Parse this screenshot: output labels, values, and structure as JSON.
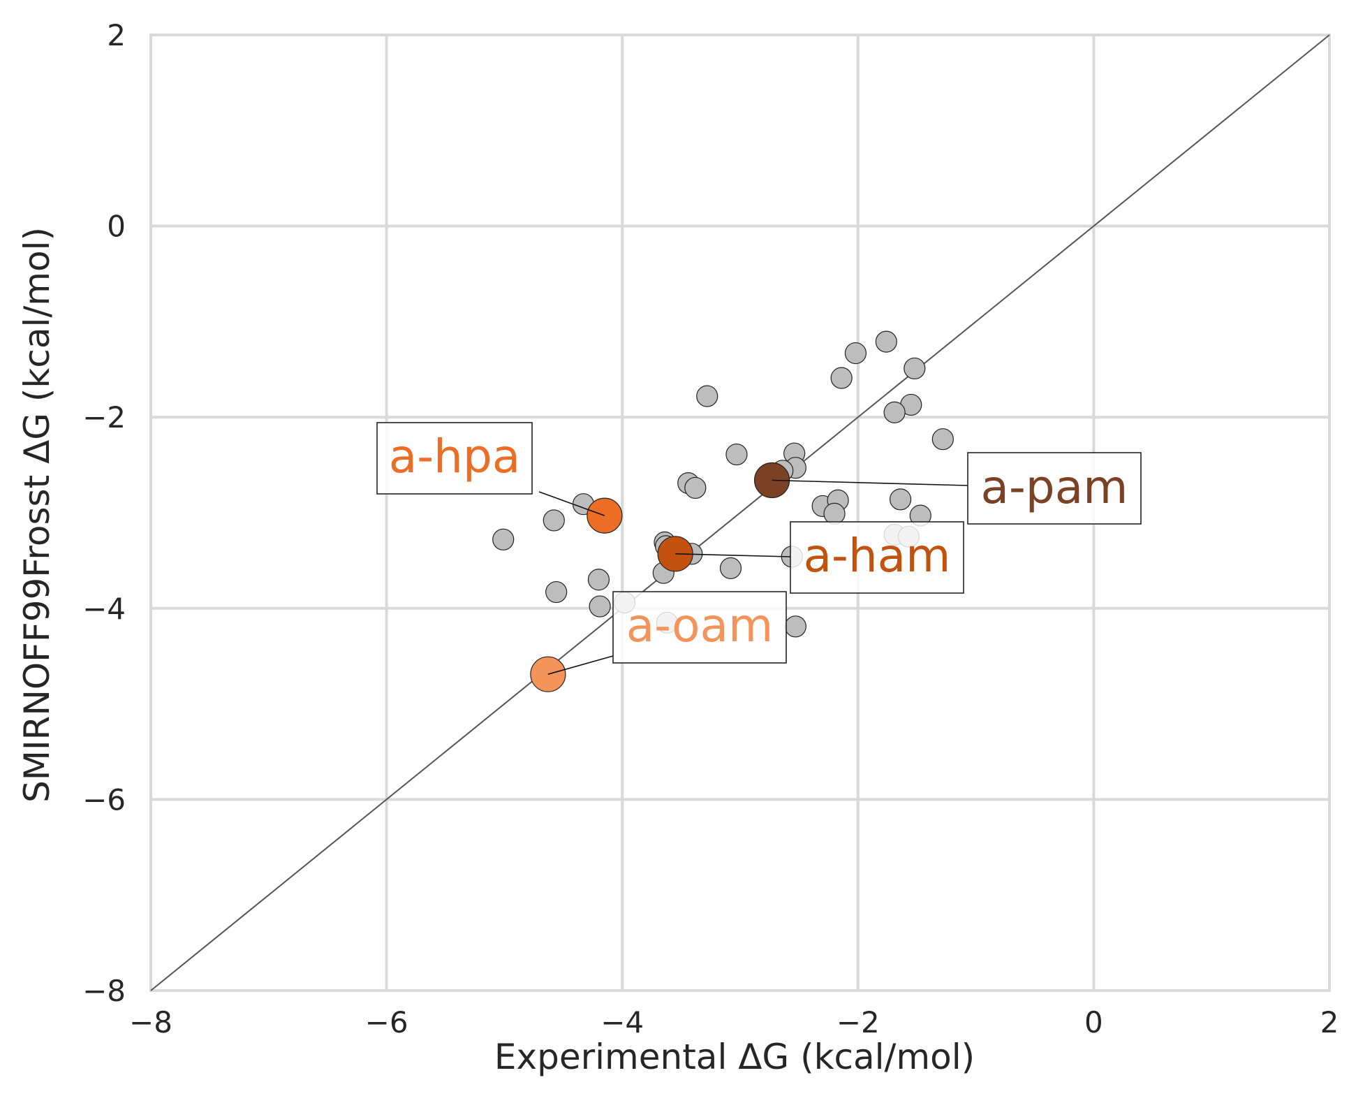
{
  "chart_data": {
    "type": "scatter",
    "title": "",
    "xlabel": "Experimental ΔG (kcal/mol)",
    "ylabel": "SMIRNOFF99Frosst ΔG (kcal/mol)",
    "xlim": [
      -8,
      2
    ],
    "ylim": [
      -8,
      2
    ],
    "xticks": [
      -8,
      -6,
      -4,
      -2,
      0,
      2
    ],
    "yticks": [
      -8,
      -6,
      -4,
      -2,
      0,
      2
    ],
    "xtick_labels": [
      "−8",
      "−6",
      "−4",
      "−2",
      "0",
      "2"
    ],
    "ytick_labels": [
      "−8",
      "−6",
      "−4",
      "−2",
      "0",
      "2"
    ],
    "grid": true,
    "identity_line": true,
    "colors": {
      "background_points": "#bdbdbd",
      "grid": "#d9d9d9",
      "identity_line": "#555555",
      "a-hpa": "#ec6d26",
      "a-pam": "#7b4125",
      "a-ham": "#c4520f",
      "a-oam": "#f4945a"
    },
    "series": [
      {
        "points": [
          [
            -1.76,
            -1.21
          ],
          [
            -2.02,
            -1.33
          ],
          [
            -1.52,
            -1.49
          ],
          [
            -2.14,
            -1.59
          ],
          [
            -1.55,
            -1.87
          ],
          [
            -1.69,
            -1.95
          ],
          [
            -1.28,
            -2.23
          ],
          [
            -3.28,
            -1.78
          ],
          [
            -3.03,
            -2.39
          ],
          [
            -2.54,
            -2.38
          ],
          [
            -2.53,
            -2.53
          ],
          [
            -2.64,
            -2.56
          ],
          [
            -3.44,
            -2.69
          ],
          [
            -3.38,
            -2.74
          ],
          [
            -2.3,
            -2.93
          ],
          [
            -2.17,
            -2.87
          ],
          [
            -2.2,
            -3.01
          ],
          [
            -1.64,
            -2.86
          ],
          [
            -1.47,
            -3.03
          ],
          [
            -4.33,
            -2.91
          ],
          [
            -4.58,
            -3.08
          ],
          [
            -5.01,
            -3.28
          ],
          [
            -3.64,
            -3.31
          ],
          [
            -3.63,
            -3.35
          ],
          [
            -3.41,
            -3.43
          ],
          [
            -3.65,
            -3.63
          ],
          [
            -3.08,
            -3.58
          ],
          [
            -2.56,
            -3.46
          ],
          [
            -4.2,
            -3.7
          ],
          [
            -4.56,
            -3.83
          ],
          [
            -4.19,
            -3.98
          ],
          [
            -3.98,
            -3.94
          ],
          [
            -3.62,
            -4.15
          ],
          [
            -2.53,
            -4.19
          ],
          [
            -1.69,
            -3.23
          ],
          [
            -1.57,
            -3.25
          ]
        ]
      },
      {
        "name": "a-hpa",
        "points": [
          [
            -4.15,
            -3.03
          ]
        ]
      },
      {
        "name": "a-pam",
        "points": [
          [
            -2.73,
            -2.66
          ]
        ]
      },
      {
        "name": "a-ham",
        "points": [
          [
            -3.55,
            -3.43
          ]
        ]
      },
      {
        "name": "a-oam",
        "points": [
          [
            -4.63,
            -4.69
          ]
        ]
      }
    ]
  }
}
